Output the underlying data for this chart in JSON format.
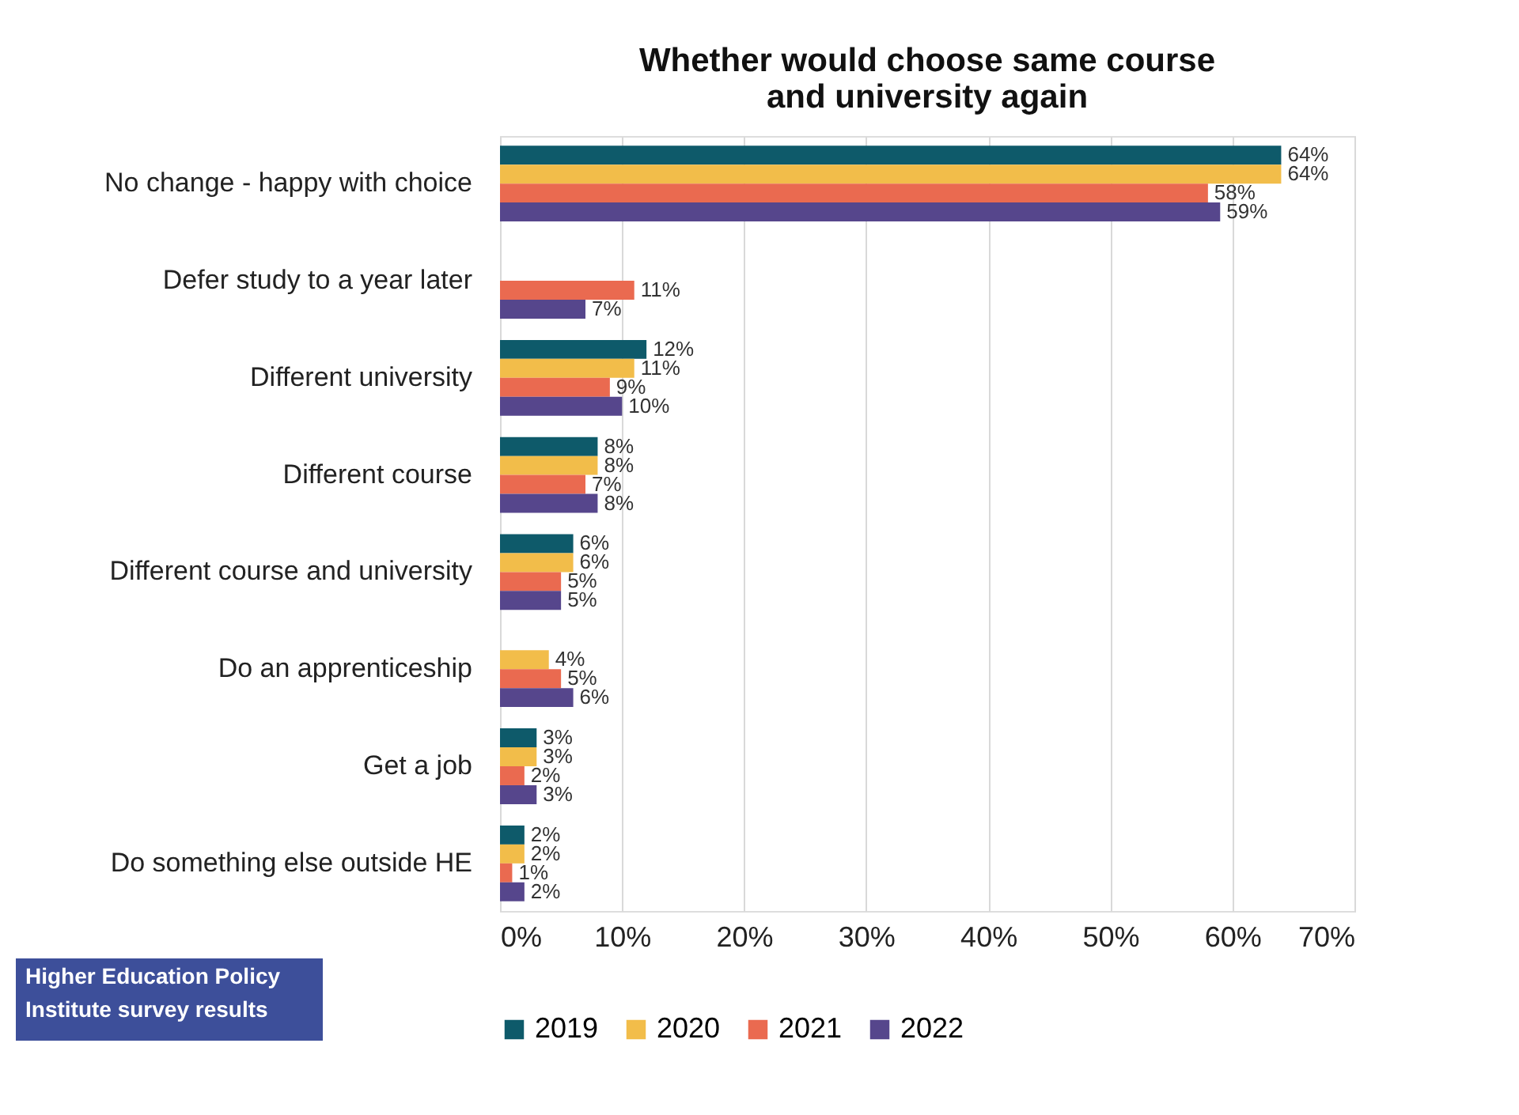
{
  "chart_data": {
    "type": "bar",
    "orientation": "horizontal",
    "title": "Whether would choose same course\nand university again",
    "categories": [
      "No change - happy with choice",
      "Defer study to a year later",
      "Different university",
      "Different course",
      "Different course and university",
      "Do an apprenticeship",
      "Get a job",
      "Do something else outside HE"
    ],
    "series": [
      {
        "name": "2019",
        "color": "#0e5a6a",
        "values": [
          64,
          null,
          12,
          8,
          6,
          null,
          3,
          2
        ],
        "value_labels": [
          "64%",
          null,
          "12%",
          "8%",
          "6%",
          null,
          "3%",
          "2%"
        ]
      },
      {
        "name": "2020",
        "color": "#f2bd4a",
        "values": [
          64,
          null,
          11,
          8,
          6,
          4,
          3,
          2
        ],
        "value_labels": [
          "64%",
          null,
          "11%",
          "8%",
          "6%",
          "4%",
          "3%",
          "2%"
        ]
      },
      {
        "name": "2021",
        "color": "#ea6a50",
        "values": [
          58,
          11,
          9,
          7,
          5,
          5,
          2,
          1
        ],
        "value_labels": [
          "58%",
          "11%",
          "9%",
          "7%",
          "5%",
          "5%",
          "2%",
          "1%"
        ]
      },
      {
        "name": "2022",
        "color": "#56468c",
        "values": [
          59,
          7,
          10,
          8,
          5,
          6,
          3,
          2
        ],
        "value_labels": [
          "59%",
          "7%",
          "10%",
          "8%",
          "5%",
          "6%",
          "3%",
          "2%"
        ]
      }
    ],
    "xlim": [
      0,
      70
    ],
    "xticks": [
      {
        "value": 0,
        "label": "0%"
      },
      {
        "value": 10,
        "label": "10%"
      },
      {
        "value": 20,
        "label": "20%"
      },
      {
        "value": 30,
        "label": "30%"
      },
      {
        "value": 40,
        "label": "40%"
      },
      {
        "value": 50,
        "label": "50%"
      },
      {
        "value": 60,
        "label": "60%"
      },
      {
        "value": 70,
        "label": "70%"
      }
    ],
    "grid": "x",
    "legend": "bottom",
    "annotations": [
      "Higher Education Policy\nInstitute survey results"
    ]
  }
}
